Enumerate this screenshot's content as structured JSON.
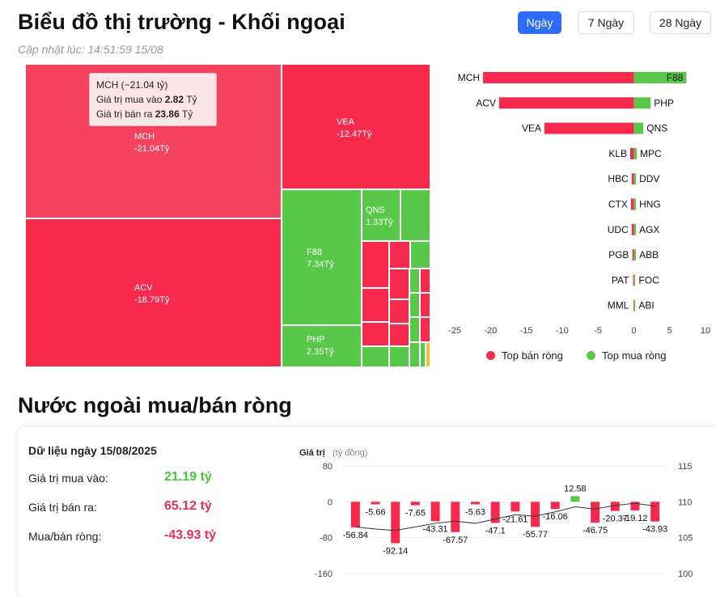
{
  "header": {
    "title": "Biểu đồ thị trường - Khối ngoại",
    "updated": "Cập nhật lúc: 14:51:59 15/08",
    "tabs": [
      "Ngày",
      "7 Ngày",
      "28 Ngày"
    ]
  },
  "treemap": {
    "tiles": [
      {
        "code": "MCH",
        "value": "-21.04Tỷ",
        "side": "sell"
      },
      {
        "code": "ACV",
        "value": "-18.79Tỷ",
        "side": "sell"
      },
      {
        "code": "VEA",
        "value": "-12.47Tỷ",
        "side": "sell"
      },
      {
        "code": "F88",
        "value": "7.34Tỷ",
        "side": "buy"
      },
      {
        "code": "QNS",
        "value": "1.33Tỷ",
        "side": "buy"
      },
      {
        "code": "PHP",
        "value": "2.35Tỷ",
        "side": "buy"
      }
    ],
    "tooltip": {
      "title": "MCH (−21.04 tỷ)",
      "buy_label": "Giá trị mua vào",
      "buy_value": "2.82",
      "buy_unit": "Tỷ",
      "sell_label": "Giá trị bán ra",
      "sell_value": "23.86",
      "sell_unit": "Tỷ"
    }
  },
  "chart_data": [
    {
      "type": "bar",
      "orientation": "horizontal",
      "xlim": [
        -25,
        10
      ],
      "x_ticks": [
        "-25",
        "-20",
        "-15",
        "-10",
        "-5",
        "0",
        "5",
        "10"
      ],
      "rows": [
        {
          "sell": "MCH",
          "sell_value": -21.04,
          "buy": "F88",
          "buy_value": 7.34
        },
        {
          "sell": "ACV",
          "sell_value": -18.79,
          "buy": "PHP",
          "buy_value": 2.35
        },
        {
          "sell": "VEA",
          "sell_value": -12.47,
          "buy": "QNS",
          "buy_value": 1.33
        },
        {
          "sell": "KLB",
          "sell_value": -0.5,
          "buy": "MPC",
          "buy_value": 0.4
        },
        {
          "sell": "HBC",
          "sell_value": -0.3,
          "buy": "DDV",
          "buy_value": 0.3
        },
        {
          "sell": "CTX",
          "sell_value": -0.4,
          "buy": "HNG",
          "buy_value": 0.3
        },
        {
          "sell": "UDC",
          "sell_value": -0.3,
          "buy": "AGX",
          "buy_value": 0.3
        },
        {
          "sell": "PGB",
          "sell_value": -0.2,
          "buy": "ABB",
          "buy_value": 0.3
        },
        {
          "sell": "PAT",
          "sell_value": -0.1,
          "buy": "FOC",
          "buy_value": 0.1
        },
        {
          "sell": "MML",
          "sell_value": -0.05,
          "buy": "ABI",
          "buy_value": 0.05
        }
      ],
      "legend": [
        "Top bán ròng",
        "Top mua ròng"
      ],
      "legend_position": "bottom",
      "colors": {
        "sell": "#f72a4e",
        "buy": "#59c84a"
      }
    },
    {
      "type": "bar",
      "ylabel": "Giá trị",
      "ylabel_unit": "(tỷ đồng)",
      "ylim": [
        -160,
        80
      ],
      "y_ticks": [
        "80",
        "0",
        "-80",
        "-160"
      ],
      "y2lim": [
        100,
        115
      ],
      "y2_ticks": [
        "115",
        "110",
        "105",
        "100"
      ],
      "values": [
        -56.84,
        -5.66,
        -92.14,
        -7.65,
        -43.31,
        -67.57,
        -5.63,
        -47.1,
        -21.61,
        -55.77,
        -16.06,
        12.58,
        -46.75,
        -20.37,
        -19.12,
        -43.93
      ],
      "labels": [
        "-56.84",
        "-5.66",
        "-92.14",
        "-7.65",
        "-43.31",
        "-67.57",
        "-5.63",
        "-47.1",
        "-21.61",
        "-55.77",
        "-16.06",
        "12.58",
        "-46.75",
        "-20.37",
        "-19.12",
        "-43.93"
      ],
      "line_values": [
        106.5,
        106.2,
        106.0,
        106.5,
        107.0,
        107.3,
        107.0,
        107.6,
        108.2,
        108.0,
        108.6,
        109.3,
        109.0,
        109.5,
        109.8,
        109.4
      ],
      "colors": {
        "neg": "#f72a4e",
        "pos": "#59c84a",
        "line": "#333333"
      }
    }
  ],
  "net": {
    "title": "Nước ngoài mua/bán ròng",
    "date_label": "Dữ liệu ngày 15/08/2025",
    "buy_label": "Giá trị mua vào:",
    "buy_value": "21.19 tỷ",
    "sell_label": "Giá trị bán ra:",
    "sell_value": "65.12 tỷ",
    "net_label": "Mua/bán ròng:",
    "net_value": "-43.93 tỷ"
  }
}
